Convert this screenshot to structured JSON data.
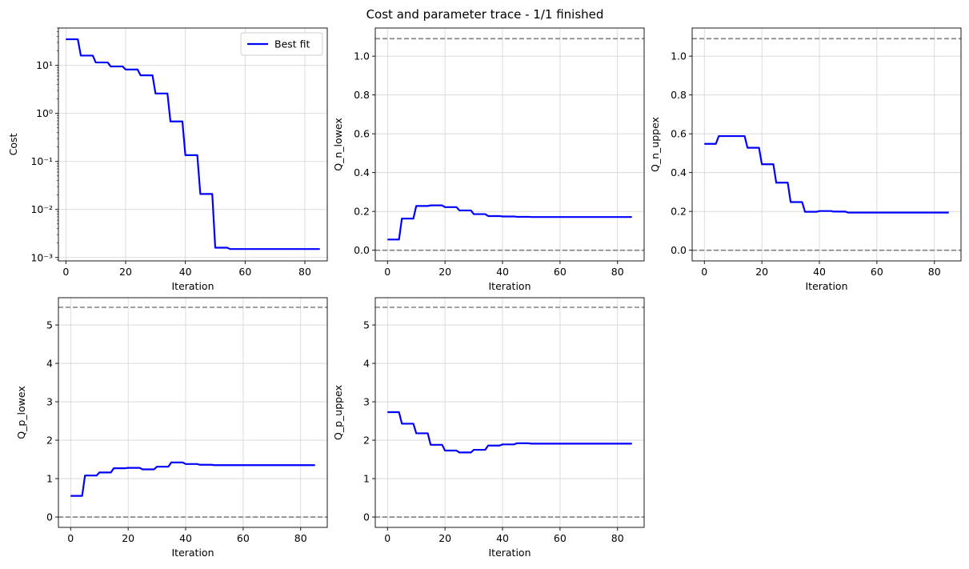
{
  "figure": {
    "title": "Cost and parameter trace - 1/1 finished"
  },
  "style": {
    "line_color": "#0000ff",
    "bound_color": "#808080",
    "grid_color": "#d3d3d3"
  },
  "chart_data": [
    {
      "type": "line",
      "xlabel": "Iteration",
      "ylabel": "Cost",
      "yscale": "log",
      "xlim": [
        -2.5,
        87.5
      ],
      "xticks": [
        0,
        20,
        40,
        60,
        80
      ],
      "ylim": [
        0.00085,
        60
      ],
      "yticks": [
        0.001,
        0.01,
        0.1,
        1,
        10
      ],
      "ytick_labels": [
        "10⁻³",
        "10⁻²",
        "10⁻¹",
        "10⁰",
        "10¹"
      ],
      "grid": true,
      "legend": {
        "position": "upper right",
        "entries": [
          "Best fit"
        ]
      },
      "series": [
        {
          "name": "Best fit",
          "x": [
            0,
            4,
            5,
            9,
            10,
            14,
            15,
            19,
            20,
            24,
            25,
            29,
            30,
            34,
            35,
            39,
            40,
            44,
            45,
            49,
            50,
            54,
            55,
            85
          ],
          "y": [
            35,
            35,
            16,
            16,
            11.5,
            11.5,
            9.5,
            9.5,
            8.2,
            8.2,
            6.2,
            6.2,
            2.6,
            2.6,
            0.68,
            0.68,
            0.135,
            0.135,
            0.021,
            0.021,
            0.0016,
            0.0016,
            0.0015,
            0.0015
          ]
        }
      ]
    },
    {
      "type": "line",
      "xlabel": "Iteration",
      "ylabel": "Q_n_lowex",
      "xlim": [
        -4.25,
        89.25
      ],
      "xticks": [
        0,
        20,
        40,
        60,
        80
      ],
      "ylim": [
        -0.055,
        1.145
      ],
      "yticks": [
        0.0,
        0.2,
        0.4,
        0.6,
        0.8,
        1.0
      ],
      "ytick_labels": [
        "0.0",
        "0.2",
        "0.4",
        "0.6",
        "0.8",
        "1.0"
      ],
      "grid": true,
      "bounds": [
        0,
        1.09
      ],
      "series": [
        {
          "x": [
            0,
            4,
            5,
            9,
            10,
            14,
            15,
            19,
            20,
            24,
            25,
            29,
            30,
            34,
            35,
            39,
            40,
            44,
            45,
            49,
            50,
            85
          ],
          "y": [
            0.055,
            0.055,
            0.163,
            0.163,
            0.228,
            0.228,
            0.231,
            0.231,
            0.222,
            0.222,
            0.205,
            0.205,
            0.186,
            0.186,
            0.176,
            0.176,
            0.174,
            0.174,
            0.172,
            0.172,
            0.171,
            0.171
          ]
        }
      ]
    },
    {
      "type": "line",
      "xlabel": "Iteration",
      "ylabel": "Q_n_uppex",
      "xlim": [
        -4.25,
        89.25
      ],
      "xticks": [
        0,
        20,
        40,
        60,
        80
      ],
      "ylim": [
        -0.055,
        1.145
      ],
      "yticks": [
        0.0,
        0.2,
        0.4,
        0.6,
        0.8,
        1.0
      ],
      "ytick_labels": [
        "0.0",
        "0.2",
        "0.4",
        "0.6",
        "0.8",
        "1.0"
      ],
      "grid": true,
      "bounds": [
        0,
        1.09
      ],
      "series": [
        {
          "x": [
            0,
            4,
            5,
            9,
            10,
            14,
            15,
            19,
            20,
            24,
            25,
            29,
            30,
            34,
            35,
            39,
            40,
            44,
            45,
            49,
            50,
            85
          ],
          "y": [
            0.548,
            0.548,
            0.588,
            0.588,
            0.588,
            0.588,
            0.528,
            0.528,
            0.443,
            0.443,
            0.348,
            0.348,
            0.248,
            0.248,
            0.198,
            0.198,
            0.202,
            0.202,
            0.199,
            0.199,
            0.194,
            0.194
          ]
        }
      ]
    },
    {
      "type": "line",
      "xlabel": "Iteration",
      "ylabel": "Q_p_lowex",
      "xlim": [
        -4.25,
        89.25
      ],
      "xticks": [
        0,
        20,
        40,
        60,
        80
      ],
      "ylim": [
        -0.27,
        5.71
      ],
      "yticks": [
        0,
        1,
        2,
        3,
        4,
        5
      ],
      "ytick_labels": [
        "0",
        "1",
        "2",
        "3",
        "4",
        "5"
      ],
      "grid": true,
      "bounds": [
        0,
        5.46
      ],
      "series": [
        {
          "x": [
            0,
            4,
            5,
            9,
            10,
            14,
            15,
            19,
            20,
            24,
            25,
            29,
            30,
            34,
            35,
            39,
            40,
            44,
            45,
            49,
            50,
            85
          ],
          "y": [
            0.55,
            0.55,
            1.08,
            1.08,
            1.16,
            1.16,
            1.27,
            1.27,
            1.28,
            1.28,
            1.24,
            1.24,
            1.31,
            1.31,
            1.42,
            1.42,
            1.38,
            1.38,
            1.36,
            1.36,
            1.35,
            1.35
          ]
        }
      ]
    },
    {
      "type": "line",
      "xlabel": "Iteration",
      "ylabel": "Q_p_uppex",
      "xlim": [
        -4.25,
        89.25
      ],
      "xticks": [
        0,
        20,
        40,
        60,
        80
      ],
      "ylim": [
        -0.27,
        5.71
      ],
      "yticks": [
        0,
        1,
        2,
        3,
        4,
        5
      ],
      "ytick_labels": [
        "0",
        "1",
        "2",
        "3",
        "4",
        "5"
      ],
      "grid": true,
      "bounds": [
        0,
        5.46
      ],
      "series": [
        {
          "x": [
            0,
            4,
            5,
            9,
            10,
            14,
            15,
            19,
            20,
            24,
            25,
            29,
            30,
            34,
            35,
            39,
            40,
            44,
            45,
            49,
            50,
            85
          ],
          "y": [
            2.73,
            2.73,
            2.43,
            2.43,
            2.18,
            2.18,
            1.88,
            1.88,
            1.73,
            1.73,
            1.68,
            1.68,
            1.75,
            1.75,
            1.86,
            1.86,
            1.89,
            1.89,
            1.92,
            1.92,
            1.91,
            1.91
          ]
        }
      ]
    }
  ]
}
